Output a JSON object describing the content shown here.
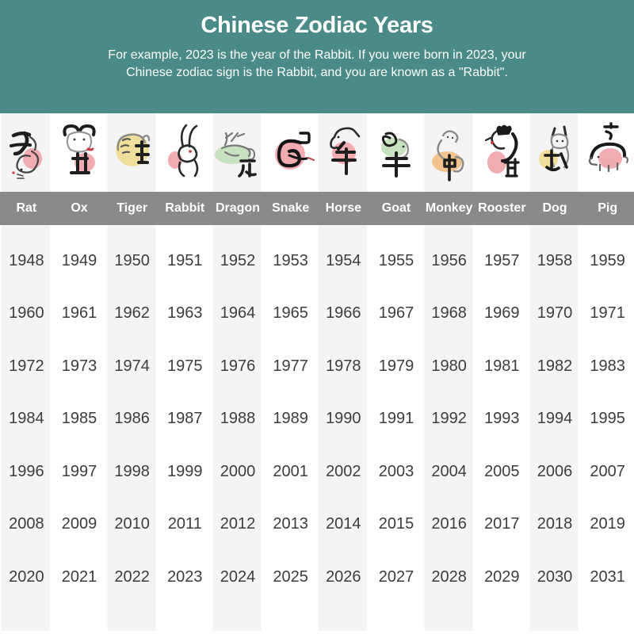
{
  "header": {
    "title": "Chinese Zodiac Years",
    "subtitle_line1": "For example, 2023 is the year of the Rabbit. If you were born in 2023, your",
    "subtitle_line2": "Chinese zodiac sign is the Rabbit, and you are known as a \"Rabbit\".",
    "background_color": "#4a8b88",
    "text_color": "#ffffff"
  },
  "zodiac": {
    "name_bar_color": "#8a8a8a",
    "name_text_color": "#ffffff",
    "animals": [
      {
        "name": "Rat",
        "branch_character": "子",
        "blob_color": "#f2abb1"
      },
      {
        "name": "Ox",
        "branch_character": "丑",
        "blob_color": "#f2abb1"
      },
      {
        "name": "Tiger",
        "branch_character": "寅",
        "blob_color": "#f0df9b"
      },
      {
        "name": "Rabbit",
        "branch_character": "卯",
        "blob_color": "#f2abb1"
      },
      {
        "name": "Dragon",
        "branch_character": "辰",
        "blob_color": "#c8e2c0"
      },
      {
        "name": "Snake",
        "branch_character": "巳",
        "blob_color": "#f2abb1"
      },
      {
        "name": "Horse",
        "branch_character": "午",
        "blob_color": "#f2abb1"
      },
      {
        "name": "Goat",
        "branch_character": "未",
        "blob_color": "#c8e2c0"
      },
      {
        "name": "Monkey",
        "branch_character": "申",
        "blob_color": "#f4c28c"
      },
      {
        "name": "Rooster",
        "branch_character": "酉",
        "blob_color": "#f2abb1"
      },
      {
        "name": "Dog",
        "branch_character": "戌",
        "blob_color": "#f0df9b"
      },
      {
        "name": "Pig",
        "branch_character": "亥",
        "blob_color": "#f2abb1"
      }
    ]
  },
  "years": {
    "first_year": 1948,
    "last_year": 2031,
    "stripe_color": "#f4f4f4",
    "text_color": "#3d3d3d"
  },
  "chart_data": {
    "type": "table",
    "title": "Chinese Zodiac Years",
    "columns": [
      "Rat",
      "Ox",
      "Tiger",
      "Rabbit",
      "Dragon",
      "Snake",
      "Horse",
      "Goat",
      "Monkey",
      "Rooster",
      "Dog",
      "Pig"
    ],
    "rows": [
      [
        1948,
        1949,
        1950,
        1951,
        1952,
        1953,
        1954,
        1955,
        1956,
        1957,
        1958,
        1959
      ],
      [
        1960,
        1961,
        1962,
        1963,
        1964,
        1965,
        1966,
        1967,
        1968,
        1969,
        1970,
        1971
      ],
      [
        1972,
        1973,
        1974,
        1975,
        1976,
        1977,
        1978,
        1979,
        1980,
        1981,
        1982,
        1983
      ],
      [
        1984,
        1985,
        1986,
        1987,
        1988,
        1989,
        1990,
        1991,
        1992,
        1993,
        1994,
        1995
      ],
      [
        1996,
        1997,
        1998,
        1999,
        2000,
        2001,
        2002,
        2003,
        2004,
        2005,
        2006,
        2007
      ],
      [
        2008,
        2009,
        2010,
        2011,
        2012,
        2013,
        2014,
        2015,
        2016,
        2017,
        2018,
        2019
      ],
      [
        2020,
        2021,
        2022,
        2023,
        2024,
        2025,
        2026,
        2027,
        2028,
        2029,
        2030,
        2031
      ]
    ]
  }
}
